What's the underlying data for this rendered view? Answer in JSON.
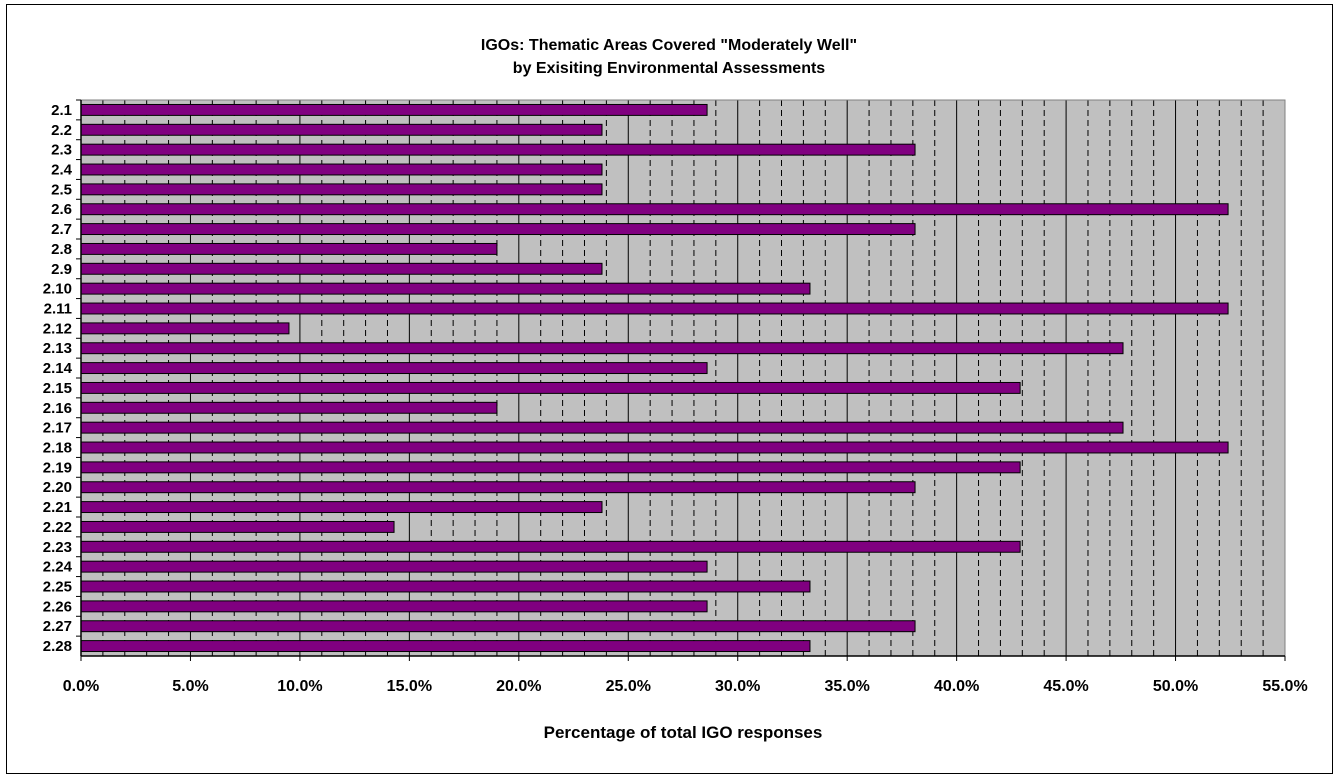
{
  "chart_data": {
    "type": "bar",
    "orientation": "horizontal",
    "title_lines": [
      "IGOs: Thematic Areas Covered \"Moderately Well\"",
      "by Exisiting Environmental Assessments"
    ],
    "xlabel": "Percentage of total IGO responses",
    "ylabel": "",
    "xlim": [
      0,
      55
    ],
    "x_ticks": [
      "0.0%",
      "5.0%",
      "10.0%",
      "15.0%",
      "20.0%",
      "25.0%",
      "30.0%",
      "35.0%",
      "40.0%",
      "45.0%",
      "50.0%",
      "55.0%"
    ],
    "grid": "major solid, minor dashed",
    "legend": "none",
    "categories": [
      "2.1",
      "2.2",
      "2.3",
      "2.4",
      "2.5",
      "2.6",
      "2.7",
      "2.8",
      "2.9",
      "2.10",
      "2.11",
      "2.12",
      "2.13",
      "2.14",
      "2.15",
      "2.16",
      "2.17",
      "2.18",
      "2.19",
      "2.20",
      "2.21",
      "2.22",
      "2.23",
      "2.24",
      "2.25",
      "2.26",
      "2.27",
      "2.28"
    ],
    "values": [
      28.6,
      23.8,
      38.1,
      23.8,
      23.8,
      52.4,
      38.1,
      19.0,
      23.8,
      33.3,
      52.4,
      9.5,
      47.6,
      28.6,
      42.9,
      19.0,
      47.6,
      52.4,
      42.9,
      38.1,
      23.8,
      14.3,
      42.9,
      28.6,
      33.3,
      28.6,
      38.1,
      33.3
    ],
    "colors": {
      "bar": "#800080",
      "plot_bg": "#c0c0c0",
      "grid": "#000000"
    }
  }
}
